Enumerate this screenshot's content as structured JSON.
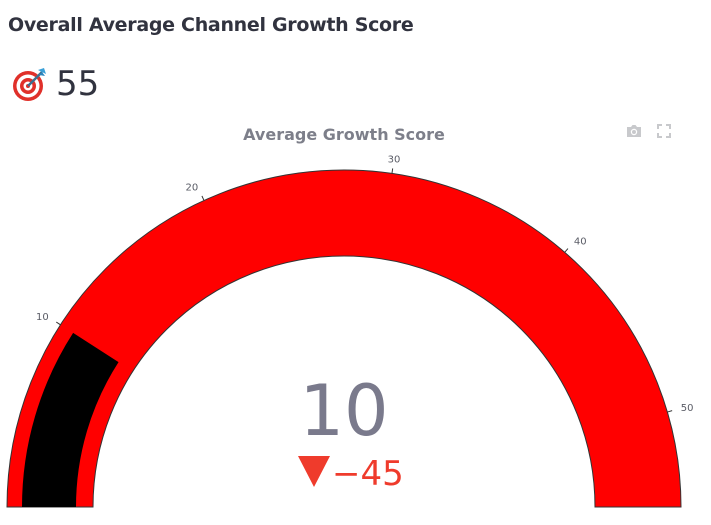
{
  "header": {
    "title": "Overall Average Channel Growth Score"
  },
  "metric": {
    "icon": "target-dart-icon",
    "value": "55"
  },
  "toolbar": {
    "icons": [
      "camera-icon",
      "fullscreen-icon"
    ]
  },
  "chart_data": {
    "type": "gauge",
    "title": "Average Growth Score",
    "value": 10,
    "reference": 55,
    "delta": -45,
    "delta_text": "−45",
    "range": [
      0,
      55
    ],
    "ticks": [
      10,
      20,
      30,
      40,
      50
    ],
    "colors": {
      "band": "#ff0000",
      "bar": "#000000",
      "delta_decreasing": "#ef3b2c",
      "number": "#7a7a8c"
    }
  }
}
